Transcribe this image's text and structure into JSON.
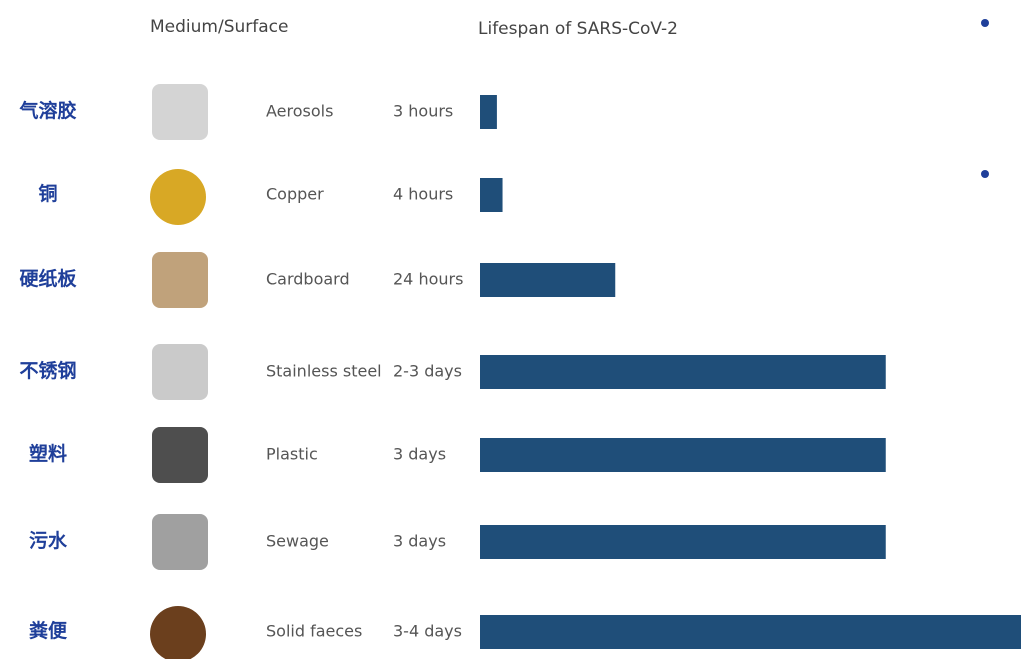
{
  "chart_data": {
    "type": "bar",
    "orientation": "horizontal",
    "header_left": "Medium/Surface",
    "header_right": "Lifespan of SARS-CoV-2",
    "chinese_labels": [
      "气溶胶",
      "铜",
      "硬纸板",
      "不锈钢",
      "塑料",
      "污水",
      "粪便"
    ],
    "categories": [
      "Aerosols",
      "Copper",
      "Cardboard",
      "Stainless steel",
      "Plastic",
      "Sewage",
      "Solid faeces"
    ],
    "values": [
      3,
      4,
      24,
      72,
      72,
      72,
      96
    ],
    "value_labels": [
      "3 hours",
      "4 hours",
      "24 hours",
      "2-3 days",
      "3 days",
      "3 days",
      "3-4 days"
    ],
    "color": "#1f4e79"
  }
}
